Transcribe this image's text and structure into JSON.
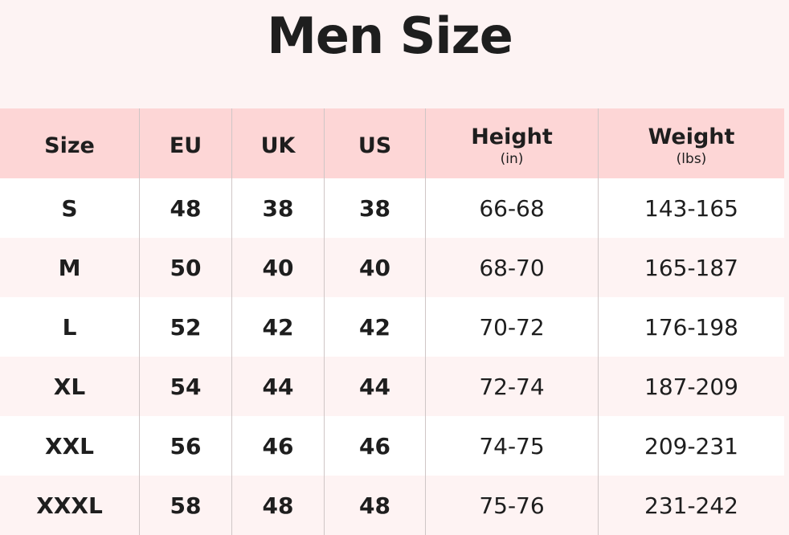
{
  "title": "Men Size",
  "colors": {
    "header_bg": "#fdd6d6",
    "row_alt_bg": "#fef3f3",
    "text": "#1e1e1e"
  },
  "headers": [
    {
      "label": "Size",
      "unit": ""
    },
    {
      "label": "EU",
      "unit": ""
    },
    {
      "label": "UK",
      "unit": ""
    },
    {
      "label": "US",
      "unit": ""
    },
    {
      "label": "Height",
      "unit": "(in)"
    },
    {
      "label": "Weight",
      "unit": "(lbs)"
    }
  ],
  "rows": [
    [
      "S",
      "48",
      "38",
      "38",
      "66-68",
      "143-165"
    ],
    [
      "M",
      "50",
      "40",
      "40",
      "68-70",
      "165-187"
    ],
    [
      "L",
      "52",
      "42",
      "42",
      "70-72",
      "176-198"
    ],
    [
      "XL",
      "54",
      "44",
      "44",
      "72-74",
      "187-209"
    ],
    [
      "XXL",
      "56",
      "46",
      "46",
      "74-75",
      "209-231"
    ],
    [
      "XXXL",
      "58",
      "48",
      "48",
      "75-76",
      "231-242"
    ]
  ]
}
